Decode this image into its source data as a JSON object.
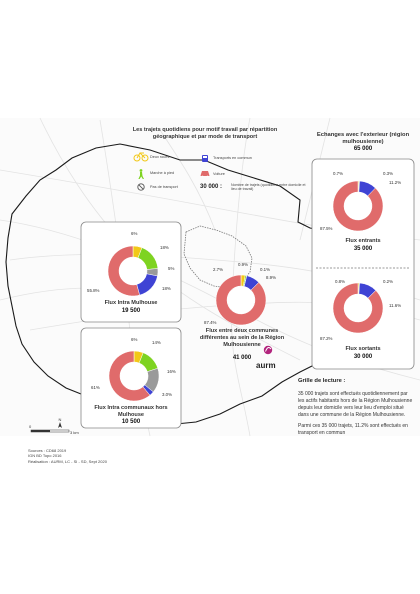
{
  "title": "Les trajets quotidiens pour motif travail par répartition géographique et par mode de transport",
  "legend": {
    "items": [
      {
        "icon": "bicycle-icon",
        "label": "Deux roues",
        "color": "#f2c818"
      },
      {
        "icon": "bus-icon",
        "label": "Transports en commun",
        "color": "#3f43d4"
      },
      {
        "icon": "walking-icon",
        "label": "Marche à pied",
        "color": "#7ed321"
      },
      {
        "icon": "car-icon",
        "label": "Voiture",
        "color": "#e06b6b"
      },
      {
        "icon": "no-transport-icon",
        "label": "Pas de transport",
        "color": "#9a9a9a"
      }
    ],
    "sample_value": "30 000 :",
    "sample_label": "Nombre de trajets (quotidiens entre domicile et lieu de travail)"
  },
  "chart_data": [
    {
      "type": "pie",
      "title": "Flux Intra Mulhouse",
      "total": "19 500",
      "categories": [
        "Deux roues",
        "Marche à pied",
        "Pas de transport",
        "Transports en commun",
        "Voiture"
      ],
      "values": [
        6,
        18,
        5,
        18,
        55.8
      ],
      "labels": [
        "6%",
        "18%",
        "5%",
        "18%",
        "55.8%"
      ]
    },
    {
      "type": "pie",
      "title": "Flux Intra communaux hors Mulhouse",
      "total": "10 500",
      "categories": [
        "Deux roues",
        "Marche à pied",
        "Pas de transport",
        "Transports en commun",
        "Voiture"
      ],
      "values": [
        6,
        14,
        16,
        3.0,
        61
      ],
      "labels": [
        "6%",
        "14%",
        "16%",
        "3.0%",
        "61%"
      ]
    },
    {
      "type": "pie",
      "title": "Flux entre deux communes différentes au sein de la Région Mulhousienne",
      "total": "41 000",
      "categories": [
        "Deux roues",
        "Marche à pied",
        "Pas de transport",
        "Transports en commun",
        "Voiture"
      ],
      "values": [
        2.7,
        0.9,
        0.1,
        8.9,
        87.4
      ],
      "labels": [
        "2.7%",
        "0.9%",
        "0.1%",
        "8.9%",
        "87.4%"
      ]
    },
    {
      "type": "pie",
      "title": "Flux entrants",
      "total": "35 000",
      "categories": [
        "Deux roues",
        "Marche à pied",
        "Transports en commun",
        "Voiture"
      ],
      "values": [
        0.7,
        0.3,
        11.2,
        87.5
      ],
      "labels": [
        "0.7%",
        "0.3%",
        "11.2%",
        "87.5%"
      ]
    },
    {
      "type": "pie",
      "title": "Flux sortants",
      "total": "30 000",
      "categories": [
        "Deux roues",
        "Marche à pied",
        "Transports en commun",
        "Voiture"
      ],
      "values": [
        0.8,
        0.2,
        11.6,
        87.2
      ],
      "labels": [
        "0.8%",
        "0.2%",
        "11.6%",
        "87.2%"
      ]
    }
  ],
  "exterior": {
    "title": "Echanges avec l'exterieur (région mulhousienne)",
    "total": "65 000"
  },
  "grille": {
    "title": "Grille de lecture :",
    "p1": "35 000 trajets sont effectués quotidiennement par les actifs habitants hors de la Région Mulhousienne depuis leur domicile vers leur lieu d'emploi situé dans une commune de la Région Mulhousienne.",
    "p2": "Parmi ces 35 000 trajets, 11.2% sont effectués en transport en commun"
  },
  "scale": {
    "zero": "0",
    "three": "3 km",
    "north": "N"
  },
  "sources": {
    "line1": "Sources : CD68 2019",
    "line2": "IGN BD Topo 2016",
    "line3": "Réalisation : AURM, LC - SI - SD, Sept 2020"
  },
  "logo": "aurm"
}
